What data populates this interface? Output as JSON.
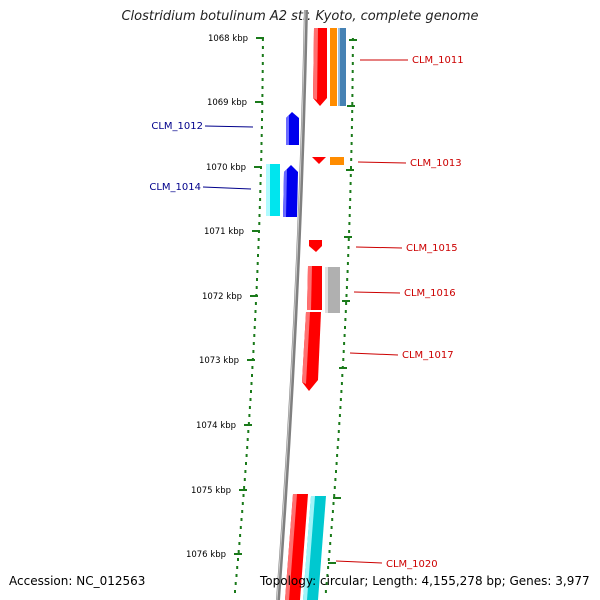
{
  "title": "Clostridium botulinum A2 str. Kyoto, complete genome",
  "accession": "Accession: NC_012563",
  "topology": "Topology: circular; Length: 4,155,278 bp; Genes: 3,977",
  "ticks": [
    "1068 kbp",
    "1069 kbp",
    "1070 kbp",
    "1071 kbp",
    "1072 kbp",
    "1073 kbp",
    "1074 kbp",
    "1075 kbp",
    "1076 kbp"
  ],
  "colors": {
    "forward_label": "#cc0000",
    "reverse_label": "#00008b",
    "backbone": "#808080",
    "tick_marks": "#1a7a1a",
    "red_gene": "#ff0000",
    "orange_gene": "#ff8c00",
    "steelblue_gene": "#4682b4",
    "blue_gene": "#0000ee",
    "cyan_gene": "#00e5ee",
    "gray_gene": "#b0b0b0"
  },
  "genes": {
    "forward": [
      "CLM_1011",
      "CLM_1013",
      "CLM_1015",
      "CLM_1016",
      "CLM_1017",
      "CLM_1020"
    ],
    "reverse": [
      "CLM_1012",
      "CLM_1014"
    ]
  }
}
